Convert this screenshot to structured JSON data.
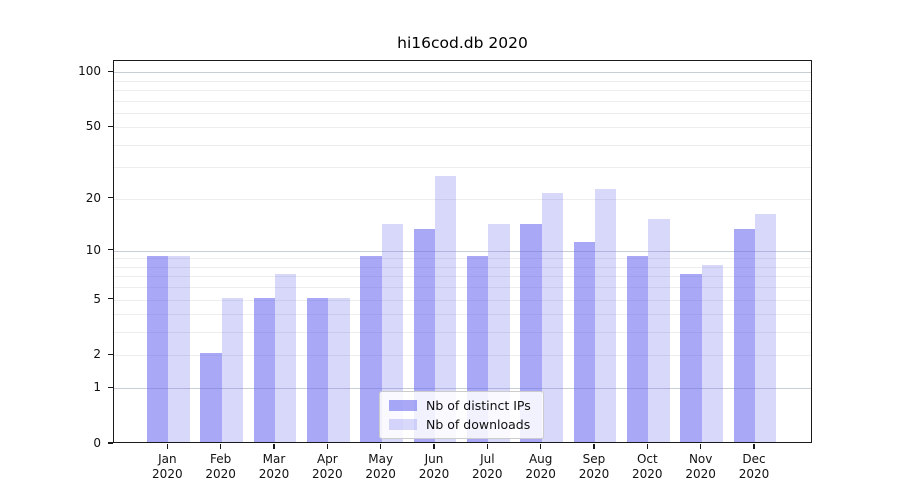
{
  "title": "hi16cod.db 2020",
  "chart_data": {
    "type": "bar",
    "categories": [
      "Jan",
      "Feb",
      "Mar",
      "Apr",
      "May",
      "Jun",
      "Jul",
      "Aug",
      "Sep",
      "Oct",
      "Nov",
      "Dec"
    ],
    "year_label": "2020",
    "series": [
      {
        "name": "Nb of distinct IPs",
        "color": "#6969f0",
        "alpha": 0.58,
        "values": [
          9,
          2,
          5,
          5,
          9,
          13,
          9,
          14,
          11,
          9,
          7,
          13
        ]
      },
      {
        "name": "Nb of downloads",
        "color": "#6969f0",
        "alpha": 0.26,
        "values": [
          9,
          5,
          7,
          5,
          14,
          26,
          14,
          21,
          22,
          15,
          8,
          16
        ]
      }
    ],
    "title": "hi16cod.db 2020",
    "xlabel": "",
    "ylabel": "",
    "yscale": "log1p",
    "ylim": [
      0,
      115
    ],
    "yticks": [
      0,
      1,
      2,
      5,
      10,
      20,
      50,
      100
    ],
    "major_gridlines": [
      1,
      10,
      100
    ],
    "minor_gridlines": [
      2,
      3,
      4,
      5,
      6,
      7,
      8,
      9,
      20,
      30,
      40,
      50,
      60,
      70,
      80,
      90
    ],
    "grid": true,
    "legend_position": "lower center"
  },
  "colors": {
    "background": "#ffffff",
    "spine": "#1a1a1a",
    "text": "#111111",
    "grid_major": "#c9cdd4",
    "grid_minor": "#ededed",
    "legend_border": "#cccccc"
  }
}
